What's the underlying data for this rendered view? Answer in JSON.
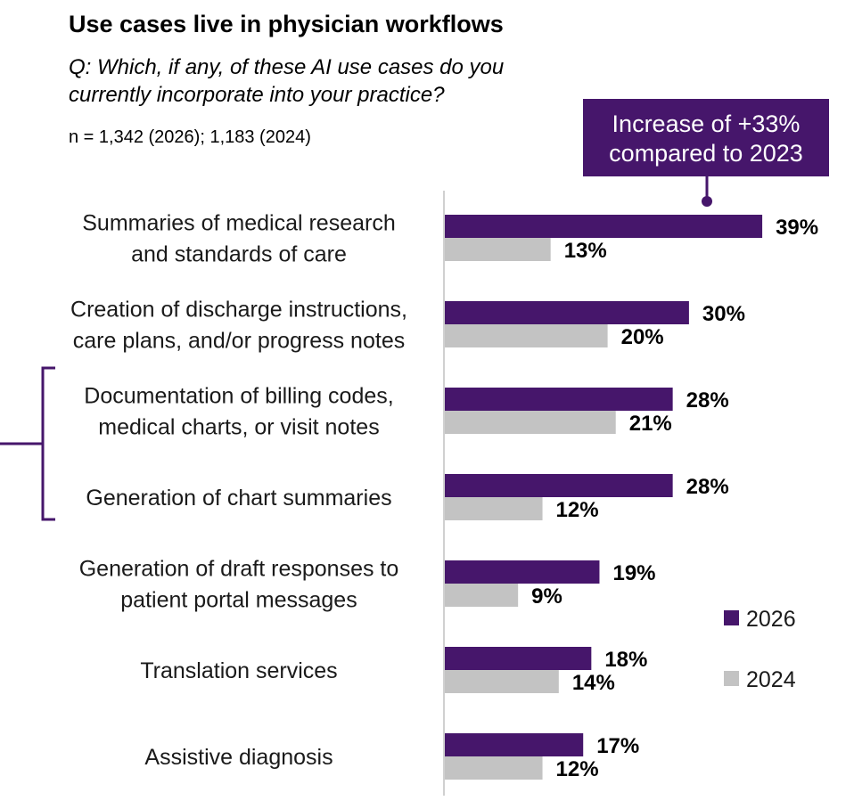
{
  "header": {
    "title": "Use cases live in physician workflows",
    "question": "Q: Which, if any, of these AI use cases do you currently incorporate into your practice?",
    "sample": "n = 1,342 (2026); 1,183 (2024)"
  },
  "callout": {
    "line1": "Increase of +33%",
    "line2": "compared to 2023"
  },
  "chart_data": {
    "type": "bar",
    "orientation": "horizontal",
    "title": "Use cases live in physician workflows",
    "xlabel": "",
    "ylabel": "",
    "xlim": [
      0,
      100
    ],
    "grid": false,
    "legend_position": "right",
    "value_suffix": "%",
    "categories": [
      [
        "Summaries of medical research",
        "and standards of care"
      ],
      [
        "Creation of discharge instructions,",
        "care plans, and/or progress notes"
      ],
      [
        "Documentation of billing codes,",
        "medical charts, or visit notes"
      ],
      [
        "Generation of chart summaries"
      ],
      [
        "Generation of draft responses to",
        "patient portal messages"
      ],
      [
        "Translation services"
      ],
      [
        "Assistive diagnosis"
      ]
    ],
    "series": [
      {
        "name": "2026",
        "color": "#46166b",
        "values": [
          39,
          30,
          28,
          28,
          19,
          18,
          17
        ]
      },
      {
        "name": "2024",
        "color": "#c3c3c3",
        "values": [
          13,
          20,
          21,
          12,
          9,
          14,
          12
        ]
      }
    ],
    "bracket_categories": [
      2,
      3
    ]
  },
  "colors": {
    "accent": "#46166b",
    "secondary": "#c3c3c3",
    "axis": "#d0d0d0"
  }
}
